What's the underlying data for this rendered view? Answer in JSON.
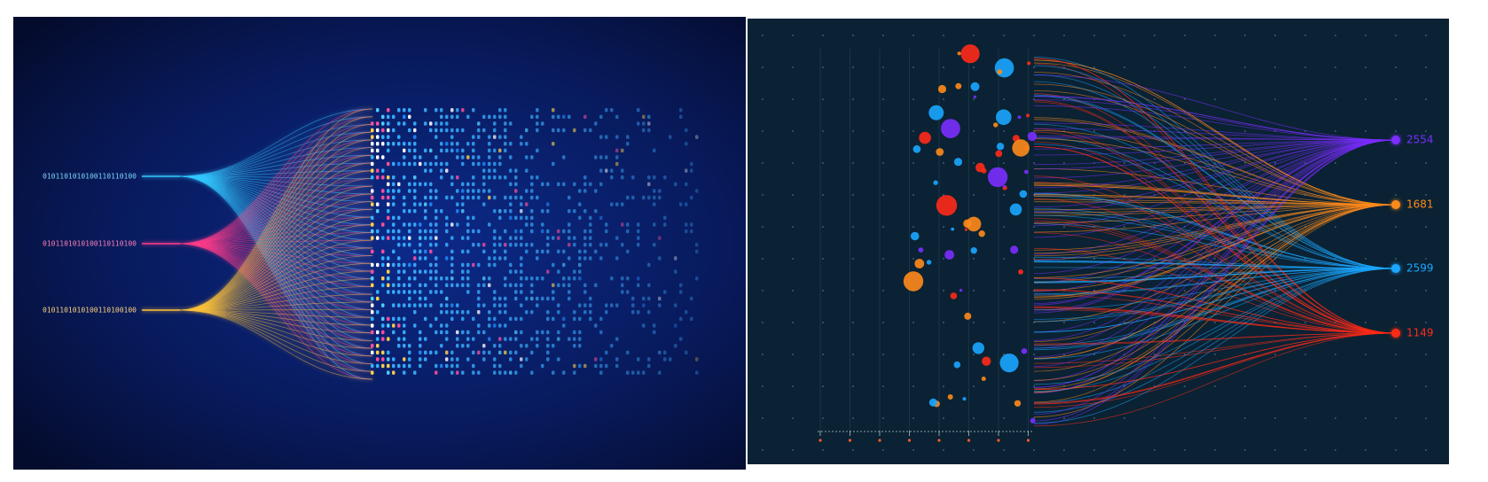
{
  "left_panel": {
    "input_streams": [
      "0101101010100110110100",
      "0101101010100110110100",
      "0101101010100110100100"
    ]
  },
  "right_panel": {
    "labels": [
      "2554",
      "1681",
      "2599",
      "1149"
    ]
  }
}
